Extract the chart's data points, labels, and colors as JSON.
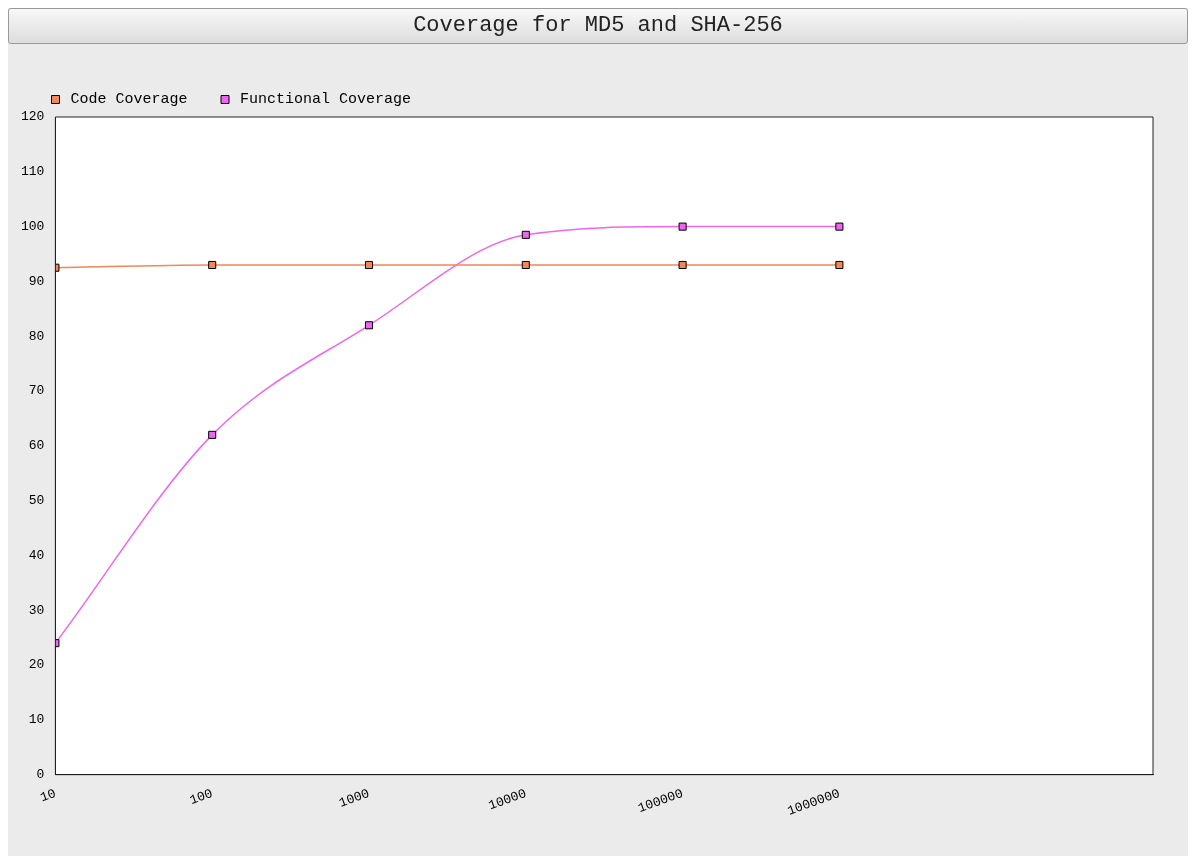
{
  "chart_data": {
    "type": "line",
    "title": "Coverage for MD5 and SHA-256",
    "x": [
      10,
      100,
      1000,
      10000,
      100000,
      1000000
    ],
    "series": [
      {
        "name": "Code Coverage",
        "color": "#f0885a",
        "values": [
          92.5,
          93,
          93,
          93,
          93,
          93
        ]
      },
      {
        "name": "Functional Coverage",
        "color": "#ee66ee",
        "values": [
          24,
          62,
          82,
          98.5,
          100,
          100
        ]
      }
    ],
    "log": "x",
    "xlim": [
      10,
      100000000
    ],
    "xticks": [
      10,
      100,
      1000,
      10000,
      100000,
      1000000
    ],
    "ylim": [
      0,
      120
    ],
    "yticks": [
      0,
      10,
      20,
      30,
      40,
      50,
      60,
      70,
      80,
      90,
      100,
      110,
      120
    ],
    "grid": false,
    "legend": "top left",
    "marker": "square",
    "line_style": "solid"
  }
}
